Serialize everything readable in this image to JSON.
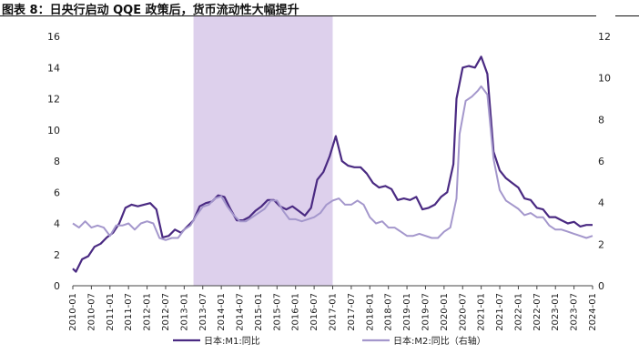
{
  "header": {
    "title": "图表 8：日央行启动 QQE 政策后，货币流动性大幅提升"
  },
  "colors": {
    "m1": "#4a2a82",
    "m2": "#a497cc",
    "shade": "#ddd0ec"
  },
  "chart_data": {
    "type": "line",
    "title": "图表 8：日央行启动 QQE 政策后，货币流动性大幅提升",
    "xlabel": "",
    "ylabel": "",
    "ylim_left": [
      0,
      16
    ],
    "ylim_right": [
      0,
      12
    ],
    "yticks_left": [
      0,
      2,
      4,
      6,
      8,
      10,
      12,
      14,
      16
    ],
    "yticks_right": [
      0,
      2,
      4,
      6,
      8,
      10,
      12
    ],
    "xticks": [
      "2010-01",
      "2010-07",
      "2011-01",
      "2011-07",
      "2012-01",
      "2012-07",
      "2013-01",
      "2013-07",
      "2014-01",
      "2014-07",
      "2015-01",
      "2015-07",
      "2016-01",
      "2016-07",
      "2017-01",
      "2017-07",
      "2018-01",
      "2018-07",
      "2019-01",
      "2019-07",
      "2020-01",
      "2020-07",
      "2021-01",
      "2021-07",
      "2022-01",
      "2022-07",
      "2023-01",
      "2023-07",
      "2024-01"
    ],
    "shaded_range": [
      "2013-04",
      "2017-01"
    ],
    "grid": false,
    "legend_position": "bottom",
    "series": [
      {
        "name": "日本:M1:同比",
        "axis": "left",
        "points": [
          [
            "2010-01",
            1.1
          ],
          [
            "2010-02",
            0.9
          ],
          [
            "2010-04",
            1.7
          ],
          [
            "2010-06",
            1.9
          ],
          [
            "2010-08",
            2.5
          ],
          [
            "2010-10",
            2.7
          ],
          [
            "2010-12",
            3.1
          ],
          [
            "2011-02",
            3.4
          ],
          [
            "2011-04",
            4.0
          ],
          [
            "2011-06",
            5.0
          ],
          [
            "2011-08",
            5.2
          ],
          [
            "2011-10",
            5.1
          ],
          [
            "2011-12",
            5.2
          ],
          [
            "2012-02",
            5.3
          ],
          [
            "2012-04",
            4.9
          ],
          [
            "2012-06",
            3.1
          ],
          [
            "2012-08",
            3.2
          ],
          [
            "2012-10",
            3.6
          ],
          [
            "2012-12",
            3.4
          ],
          [
            "2013-02",
            3.8
          ],
          [
            "2013-04",
            4.2
          ],
          [
            "2013-06",
            5.1
          ],
          [
            "2013-08",
            5.3
          ],
          [
            "2013-10",
            5.4
          ],
          [
            "2013-12",
            5.8
          ],
          [
            "2014-02",
            5.7
          ],
          [
            "2014-04",
            4.9
          ],
          [
            "2014-06",
            4.2
          ],
          [
            "2014-08",
            4.2
          ],
          [
            "2014-10",
            4.4
          ],
          [
            "2014-12",
            4.8
          ],
          [
            "2015-02",
            5.1
          ],
          [
            "2015-04",
            5.5
          ],
          [
            "2015-06",
            5.5
          ],
          [
            "2015-08",
            5.1
          ],
          [
            "2015-10",
            4.9
          ],
          [
            "2015-12",
            5.1
          ],
          [
            "2016-02",
            4.8
          ],
          [
            "2016-04",
            4.5
          ],
          [
            "2016-06",
            5.0
          ],
          [
            "2016-08",
            6.8
          ],
          [
            "2016-10",
            7.3
          ],
          [
            "2016-12",
            8.3
          ],
          [
            "2017-02",
            9.6
          ],
          [
            "2017-04",
            8.0
          ],
          [
            "2017-06",
            7.7
          ],
          [
            "2017-08",
            7.6
          ],
          [
            "2017-10",
            7.6
          ],
          [
            "2017-12",
            7.2
          ],
          [
            "2018-02",
            6.6
          ],
          [
            "2018-04",
            6.3
          ],
          [
            "2018-06",
            6.4
          ],
          [
            "2018-08",
            6.2
          ],
          [
            "2018-10",
            5.5
          ],
          [
            "2018-12",
            5.6
          ],
          [
            "2019-02",
            5.5
          ],
          [
            "2019-04",
            5.7
          ],
          [
            "2019-06",
            4.9
          ],
          [
            "2019-08",
            5.0
          ],
          [
            "2019-10",
            5.2
          ],
          [
            "2019-12",
            5.7
          ],
          [
            "2020-02",
            6.0
          ],
          [
            "2020-04",
            7.8
          ],
          [
            "2020-05",
            12.0
          ],
          [
            "2020-07",
            14.0
          ],
          [
            "2020-09",
            14.1
          ],
          [
            "2020-11",
            14.0
          ],
          [
            "2021-01",
            14.7
          ],
          [
            "2021-03",
            13.6
          ],
          [
            "2021-05",
            8.6
          ],
          [
            "2021-07",
            7.4
          ],
          [
            "2021-09",
            6.9
          ],
          [
            "2021-11",
            6.6
          ],
          [
            "2022-01",
            6.3
          ],
          [
            "2022-03",
            5.6
          ],
          [
            "2022-05",
            5.5
          ],
          [
            "2022-07",
            5.0
          ],
          [
            "2022-09",
            4.9
          ],
          [
            "2022-11",
            4.4
          ],
          [
            "2023-01",
            4.4
          ],
          [
            "2023-03",
            4.2
          ],
          [
            "2023-05",
            4.0
          ],
          [
            "2023-07",
            4.1
          ],
          [
            "2023-09",
            3.8
          ],
          [
            "2023-11",
            3.9
          ],
          [
            "2024-01",
            3.9
          ]
        ]
      },
      {
        "name": "日本:M2:同比（右轴）",
        "axis": "right",
        "points": [
          [
            "2010-01",
            3.0
          ],
          [
            "2010-03",
            2.8
          ],
          [
            "2010-05",
            3.1
          ],
          [
            "2010-07",
            2.8
          ],
          [
            "2010-09",
            2.9
          ],
          [
            "2010-11",
            2.8
          ],
          [
            "2011-01",
            2.4
          ],
          [
            "2011-03",
            2.9
          ],
          [
            "2011-05",
            2.9
          ],
          [
            "2011-07",
            3.0
          ],
          [
            "2011-09",
            2.7
          ],
          [
            "2011-11",
            3.0
          ],
          [
            "2012-01",
            3.1
          ],
          [
            "2012-03",
            3.0
          ],
          [
            "2012-05",
            2.3
          ],
          [
            "2012-07",
            2.2
          ],
          [
            "2012-09",
            2.3
          ],
          [
            "2012-11",
            2.3
          ],
          [
            "2013-01",
            2.7
          ],
          [
            "2013-03",
            2.9
          ],
          [
            "2013-05",
            3.4
          ],
          [
            "2013-07",
            3.8
          ],
          [
            "2013-09",
            3.9
          ],
          [
            "2013-11",
            4.2
          ],
          [
            "2014-01",
            4.3
          ],
          [
            "2014-03",
            3.8
          ],
          [
            "2014-05",
            3.4
          ],
          [
            "2014-07",
            3.1
          ],
          [
            "2014-09",
            3.1
          ],
          [
            "2014-11",
            3.3
          ],
          [
            "2015-01",
            3.5
          ],
          [
            "2015-03",
            3.7
          ],
          [
            "2015-05",
            4.1
          ],
          [
            "2015-07",
            4.1
          ],
          [
            "2015-09",
            3.6
          ],
          [
            "2015-11",
            3.2
          ],
          [
            "2016-01",
            3.2
          ],
          [
            "2016-03",
            3.1
          ],
          [
            "2016-05",
            3.2
          ],
          [
            "2016-07",
            3.3
          ],
          [
            "2016-09",
            3.5
          ],
          [
            "2016-11",
            3.9
          ],
          [
            "2017-01",
            4.1
          ],
          [
            "2017-03",
            4.2
          ],
          [
            "2017-05",
            3.9
          ],
          [
            "2017-07",
            3.9
          ],
          [
            "2017-09",
            4.1
          ],
          [
            "2017-11",
            3.9
          ],
          [
            "2018-01",
            3.3
          ],
          [
            "2018-03",
            3.0
          ],
          [
            "2018-05",
            3.1
          ],
          [
            "2018-07",
            2.8
          ],
          [
            "2018-09",
            2.8
          ],
          [
            "2018-11",
            2.6
          ],
          [
            "2019-01",
            2.4
          ],
          [
            "2019-03",
            2.4
          ],
          [
            "2019-05",
            2.5
          ],
          [
            "2019-07",
            2.4
          ],
          [
            "2019-09",
            2.3
          ],
          [
            "2019-11",
            2.3
          ],
          [
            "2020-01",
            2.6
          ],
          [
            "2020-03",
            2.8
          ],
          [
            "2020-05",
            4.2
          ],
          [
            "2020-06",
            7.3
          ],
          [
            "2020-08",
            8.9
          ],
          [
            "2020-10",
            9.1
          ],
          [
            "2020-12",
            9.4
          ],
          [
            "2021-01",
            9.6
          ],
          [
            "2021-03",
            9.2
          ],
          [
            "2021-05",
            6.1
          ],
          [
            "2021-07",
            4.6
          ],
          [
            "2021-09",
            4.1
          ],
          [
            "2021-11",
            3.9
          ],
          [
            "2022-01",
            3.7
          ],
          [
            "2022-03",
            3.4
          ],
          [
            "2022-05",
            3.5
          ],
          [
            "2022-07",
            3.3
          ],
          [
            "2022-09",
            3.3
          ],
          [
            "2022-11",
            2.9
          ],
          [
            "2023-01",
            2.7
          ],
          [
            "2023-03",
            2.7
          ],
          [
            "2023-05",
            2.6
          ],
          [
            "2023-07",
            2.5
          ],
          [
            "2023-09",
            2.4
          ],
          [
            "2023-11",
            2.3
          ],
          [
            "2024-01",
            2.4
          ]
        ]
      }
    ]
  }
}
